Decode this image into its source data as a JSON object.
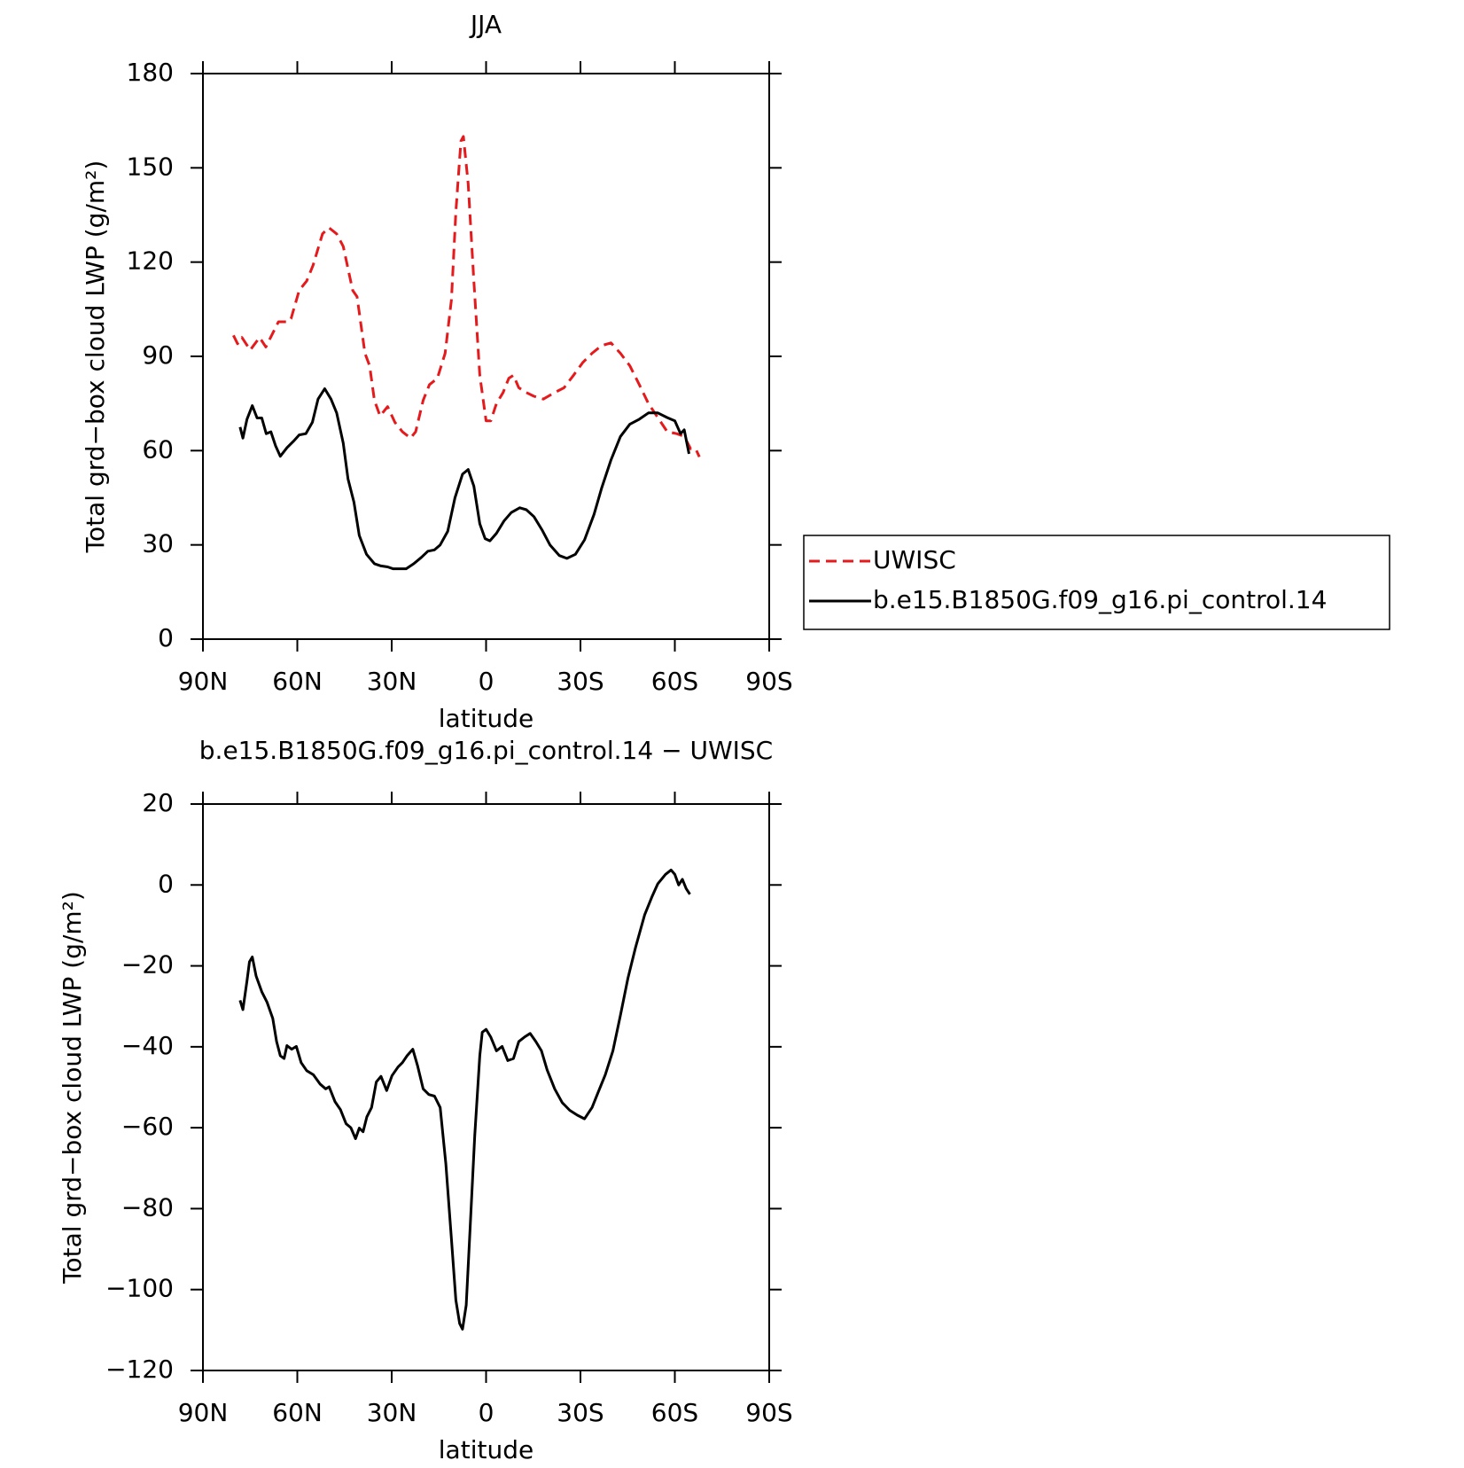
{
  "chart_data": [
    {
      "type": "line",
      "title": "JJA",
      "xlabel": "latitude",
      "ylabel": "Total grd−box cloud LWP (g/m²)",
      "xlim": [
        90,
        -90
      ],
      "xticks": [
        {
          "value": 90,
          "label": "90N"
        },
        {
          "value": 60,
          "label": "60N"
        },
        {
          "value": 30,
          "label": "30N"
        },
        0,
        {
          "value": -30,
          "label": "30S"
        },
        {
          "value": -60,
          "label": "60S"
        },
        {
          "value": -90,
          "label": "90S"
        }
      ],
      "ylim": [
        0,
        180
      ],
      "yticks": [
        0,
        30,
        60,
        90,
        120,
        150,
        180
      ],
      "legend": "right",
      "series": [
        {
          "name": "UWISC",
          "color": "#e41a1c",
          "linestyle": "dashed",
          "x": [
            80.3,
            79,
            77.6,
            75,
            72,
            70,
            68,
            66,
            63,
            62,
            59.4,
            57,
            55,
            52,
            50,
            47.5,
            45.4,
            42.4,
            41,
            38.5,
            37,
            35.5,
            33.7,
            31.3,
            29,
            26.6,
            24,
            22.4,
            20,
            18,
            15.5,
            13,
            11,
            9.6,
            8,
            7.2,
            5.7,
            3.9,
            2,
            0,
            -1.5,
            -3.3,
            -5.4,
            -7.2,
            -8.7,
            -10.4,
            -12.8,
            -15.2,
            -18.2,
            -21.8,
            -24.8,
            -27.8,
            -30.7,
            -33.7,
            -36.7,
            -39.7,
            -42.7,
            -45.7,
            -48.7,
            -51.6,
            -54.6,
            -57.6,
            -60.6,
            -63,
            -65,
            -66.6,
            -67.8
          ],
          "values": [
            96.7,
            94,
            96,
            92,
            96,
            93,
            97,
            101,
            101,
            102,
            111,
            114,
            119,
            129,
            131,
            129,
            125,
            111,
            109,
            91,
            87,
            76,
            71,
            74,
            69,
            66,
            64,
            66,
            76,
            81,
            83,
            91,
            108,
            136,
            158.5,
            160,
            145,
            114,
            84,
            69.5,
            69.5,
            75,
            78.5,
            83,
            84,
            80,
            78.5,
            77.3,
            76.4,
            78.5,
            80,
            84,
            88,
            91,
            93.4,
            94.3,
            91,
            87,
            81,
            75,
            70.5,
            66,
            65.4,
            64.5,
            60.6,
            60.6,
            58
          ]
        },
        {
          "name": "b.e15.B1850G.f09_g16.pi_control.14",
          "color": "#000000",
          "linestyle": "solid",
          "x": [
            78.2,
            77.3,
            76,
            74.3,
            72.8,
            71.3,
            69.9,
            68.4,
            66.9,
            65.4,
            63.3,
            61.2,
            59.4,
            57.3,
            55.2,
            53.4,
            51.3,
            49.3,
            47.5,
            45.4,
            43.9,
            42,
            40.3,
            38,
            35.5,
            33.4,
            31.3,
            29.6,
            27.5,
            25.4,
            23,
            20.6,
            18.5,
            16.4,
            14.6,
            12.2,
            9.9,
            7.5,
            5.7,
            3.9,
            2,
            0.3,
            -1.2,
            -3.3,
            -5.7,
            -8,
            -10.7,
            -12.8,
            -15.2,
            -17.9,
            -20.3,
            -23.3,
            -25.7,
            -28.4,
            -31.3,
            -34.3,
            -36.7,
            -39.7,
            -42.7,
            -45.7,
            -48.7,
            -51.6,
            -54.6,
            -57.6,
            -60,
            -61.8,
            -63,
            -64.5
          ],
          "values": [
            67.5,
            64,
            70,
            74.3,
            70.4,
            70.4,
            65.4,
            66,
            61.5,
            58.2,
            60.9,
            63,
            65,
            65.4,
            69,
            76.4,
            79.7,
            76.4,
            72,
            62.4,
            51,
            43.6,
            33,
            27,
            24,
            23.3,
            23,
            22.4,
            22.4,
            22.4,
            24,
            26,
            28,
            28.4,
            30,
            34.3,
            45,
            52.5,
            54,
            48.7,
            36.7,
            32,
            31.3,
            33.7,
            37.6,
            40.3,
            41.8,
            41.2,
            39,
            34.6,
            30,
            26.6,
            25.7,
            27,
            31.6,
            39.7,
            48,
            57,
            64.5,
            68.4,
            70,
            72,
            72,
            70.5,
            69.5,
            65.4,
            66.6,
            59
          ]
        }
      ]
    },
    {
      "type": "line",
      "title": "b.e15.B1850G.f09_g16.pi_control.14 − UWISC",
      "xlabel": "latitude",
      "ylabel": "Total grd−box cloud LWP (g/m²)",
      "xlim": [
        90,
        -90
      ],
      "xticks": [
        {
          "value": 90,
          "label": "90N"
        },
        {
          "value": 60,
          "label": "60N"
        },
        {
          "value": 30,
          "label": "30N"
        },
        0,
        {
          "value": -30,
          "label": "30S"
        },
        {
          "value": -60,
          "label": "60S"
        },
        {
          "value": -90,
          "label": "90S"
        }
      ],
      "ylim": [
        -120,
        20
      ],
      "yticks": [
        {
          "value": -120,
          "label": "−120"
        },
        {
          "value": -100,
          "label": "−100"
        },
        {
          "value": -80,
          "label": "−80"
        },
        {
          "value": -60,
          "label": "−60"
        },
        {
          "value": -40,
          "label": "−40"
        },
        {
          "value": -20,
          "label": "−20"
        },
        0,
        20
      ],
      "color": "#000000",
      "x": [
        78.2,
        77.3,
        76,
        75.2,
        74.3,
        73.1,
        71.3,
        69.6,
        67.8,
        66.6,
        65.4,
        64.2,
        63.3,
        61.8,
        60.3,
        58.8,
        57,
        54.9,
        52.8,
        51,
        49.9,
        48,
        46.3,
        44.5,
        43,
        41.5,
        40.3,
        39.1,
        37.9,
        36.4,
        34.9,
        33.4,
        31.6,
        29.9,
        28,
        26.6,
        25.1,
        23.3,
        21.8,
        20,
        18.2,
        16.4,
        14.6,
        12.8,
        11,
        9.6,
        8.4,
        7.5,
        6.3,
        5.1,
        3.6,
        2,
        1.2,
        0,
        -1.5,
        -3.3,
        -5.1,
        -6.9,
        -8.7,
        -10.4,
        -12.2,
        -14,
        -15.8,
        -17.6,
        -19.4,
        -21.8,
        -24.2,
        -26.6,
        -29,
        -31.3,
        -33.7,
        -35.5,
        -37.9,
        -40.3,
        -42.7,
        -45.1,
        -47.5,
        -50.4,
        -52.8,
        -54.6,
        -57,
        -58.8,
        -60,
        -61.2,
        -62.4,
        -63.6,
        -64.8
      ],
      "values": [
        -28.5,
        -30.8,
        -23.7,
        -19,
        -17.8,
        -22.5,
        -26.4,
        -29,
        -33,
        -38.7,
        -42.2,
        -42.9,
        -39.7,
        -40.6,
        -39.9,
        -43.9,
        -45.9,
        -46.9,
        -49.2,
        -50.4,
        -49.9,
        -53.6,
        -55.5,
        -59,
        -60,
        -62.7,
        -60.1,
        -61,
        -57.3,
        -55,
        -48.7,
        -47.3,
        -50.8,
        -47.1,
        -45,
        -43.9,
        -42.2,
        -40.6,
        -44.6,
        -50.4,
        -51.8,
        -52.2,
        -55,
        -68.9,
        -87.5,
        -102.6,
        -108.4,
        -109.8,
        -103.8,
        -85.2,
        -62,
        -42.2,
        -36.4,
        -35.7,
        -37.6,
        -41,
        -39.9,
        -43.4,
        -42.9,
        -38.7,
        -37.6,
        -36.7,
        -38.7,
        -41,
        -45.7,
        -50.4,
        -53.8,
        -55.7,
        -56.9,
        -57.8,
        -55,
        -51.5,
        -46.9,
        -41,
        -32.2,
        -23,
        -15.5,
        -7.4,
        -2.8,
        0.3,
        2.6,
        3.7,
        2.6,
        0,
        1.4,
        -0.9,
        -2.3
      ]
    }
  ]
}
